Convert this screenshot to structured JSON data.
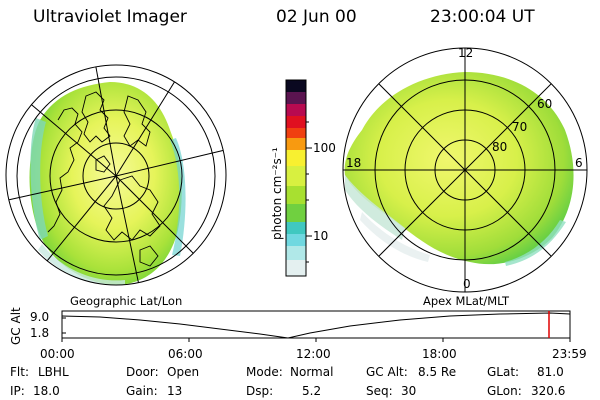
{
  "header": {
    "instrument": "Ultraviolet Imager",
    "date": "02 Jun 00",
    "time": "23:00:04 UT"
  },
  "colorbar": {
    "unit_label": "photon cm⁻²s⁻¹",
    "ticks": [
      "100",
      "10"
    ]
  },
  "left_panel": {
    "caption": "Geographic Lat/Lon"
  },
  "right_panel": {
    "caption": "Apex MLat/MLT",
    "mlt_labels": [
      "12",
      "18",
      "6",
      "0"
    ],
    "mlat_labels": [
      "60",
      "70",
      "80"
    ]
  },
  "altitude_strip": {
    "ylabel": "GC Alt",
    "y_ticks": [
      "9.0",
      "1.8"
    ],
    "x_ticks": [
      "00:00",
      "06:00",
      "12:00",
      "18:00",
      "23:59"
    ],
    "marker_color": "#e00000"
  },
  "status": {
    "flt": {
      "label": "Flt:",
      "value": "LBHL"
    },
    "ip": {
      "label": "IP:",
      "value": "18.0"
    },
    "door": {
      "label": "Door:",
      "value": "Open"
    },
    "gain": {
      "label": "Gain:",
      "value": "13"
    },
    "mode": {
      "label": "Mode:",
      "value": "Normal"
    },
    "dsp": {
      "label": "Dsp:",
      "value": "5.2"
    },
    "gcalt": {
      "label": "GC Alt:",
      "value": "8.5 Re"
    },
    "seq": {
      "label": "Seq:",
      "value": "30"
    },
    "glat": {
      "label": "GLat:",
      "value": "81.0"
    },
    "glon": {
      "label": "GLon:",
      "value": "320.6"
    }
  }
}
